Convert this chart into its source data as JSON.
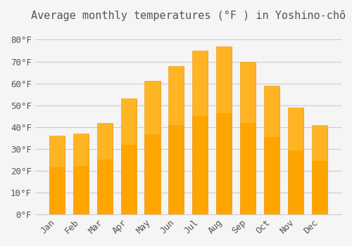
{
  "title": "Average monthly temperatures (°F ) in Yoshino-chō",
  "months": [
    "Jan",
    "Feb",
    "Mar",
    "Apr",
    "May",
    "Jun",
    "Jul",
    "Aug",
    "Sep",
    "Oct",
    "Nov",
    "Dec"
  ],
  "temperatures": [
    36,
    37,
    42,
    53,
    61,
    68,
    75,
    77,
    70,
    59,
    49,
    41
  ],
  "bar_color": "#FFA500",
  "bar_edge_color": "#E8900A",
  "background_color": "#F5F5F5",
  "grid_color": "#CCCCCC",
  "text_color": "#555555",
  "ylim": [
    0,
    85
  ],
  "yticks": [
    0,
    10,
    20,
    30,
    40,
    50,
    60,
    70,
    80
  ],
  "title_fontsize": 11,
  "tick_fontsize": 9,
  "figsize": [
    5.0,
    3.5
  ],
  "dpi": 100
}
